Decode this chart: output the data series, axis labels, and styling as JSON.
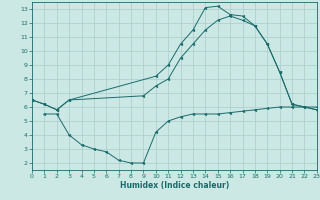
{
  "xlabel": "Humidex (Indice chaleur)",
  "bg_color": "#cce8e4",
  "grid_color": "#aacccc",
  "line_color": "#1a6b6b",
  "xlim": [
    0,
    23
  ],
  "ylim": [
    1.5,
    13.5
  ],
  "xticks": [
    0,
    1,
    2,
    3,
    4,
    5,
    6,
    7,
    8,
    9,
    10,
    11,
    12,
    13,
    14,
    15,
    16,
    17,
    18,
    19,
    20,
    21,
    22,
    23
  ],
  "yticks": [
    2,
    3,
    4,
    5,
    6,
    7,
    8,
    9,
    10,
    11,
    12,
    13
  ],
  "line1_x": [
    0,
    1,
    2,
    3,
    10,
    11,
    12,
    13,
    14,
    15,
    16,
    17,
    18,
    19,
    20,
    21,
    22,
    23
  ],
  "line1_y": [
    6.5,
    6.2,
    5.8,
    6.5,
    8.2,
    9.0,
    10.5,
    11.5,
    13.1,
    13.2,
    12.6,
    12.5,
    11.8,
    10.5,
    8.5,
    6.2,
    6.0,
    5.8
  ],
  "line2_x": [
    0,
    1,
    2,
    3,
    9,
    10,
    11,
    12,
    13,
    14,
    15,
    16,
    17,
    18,
    19,
    20,
    21,
    22,
    23
  ],
  "line2_y": [
    6.5,
    6.2,
    5.8,
    6.5,
    6.8,
    7.5,
    8.0,
    9.5,
    10.5,
    11.5,
    12.2,
    12.5,
    12.2,
    11.8,
    10.5,
    8.5,
    6.2,
    6.0,
    5.8
  ],
  "line3_x": [
    1,
    2,
    3,
    4,
    5,
    6,
    7,
    8,
    9,
    10,
    11,
    12,
    13,
    14,
    15,
    16,
    17,
    18,
    19,
    20,
    21,
    22,
    23
  ],
  "line3_y": [
    5.5,
    5.5,
    4.0,
    3.3,
    3.0,
    2.8,
    2.2,
    2.0,
    2.0,
    4.2,
    5.0,
    5.3,
    5.5,
    5.5,
    5.5,
    5.6,
    5.7,
    5.8,
    5.9,
    6.0,
    6.0,
    6.0,
    6.0
  ]
}
